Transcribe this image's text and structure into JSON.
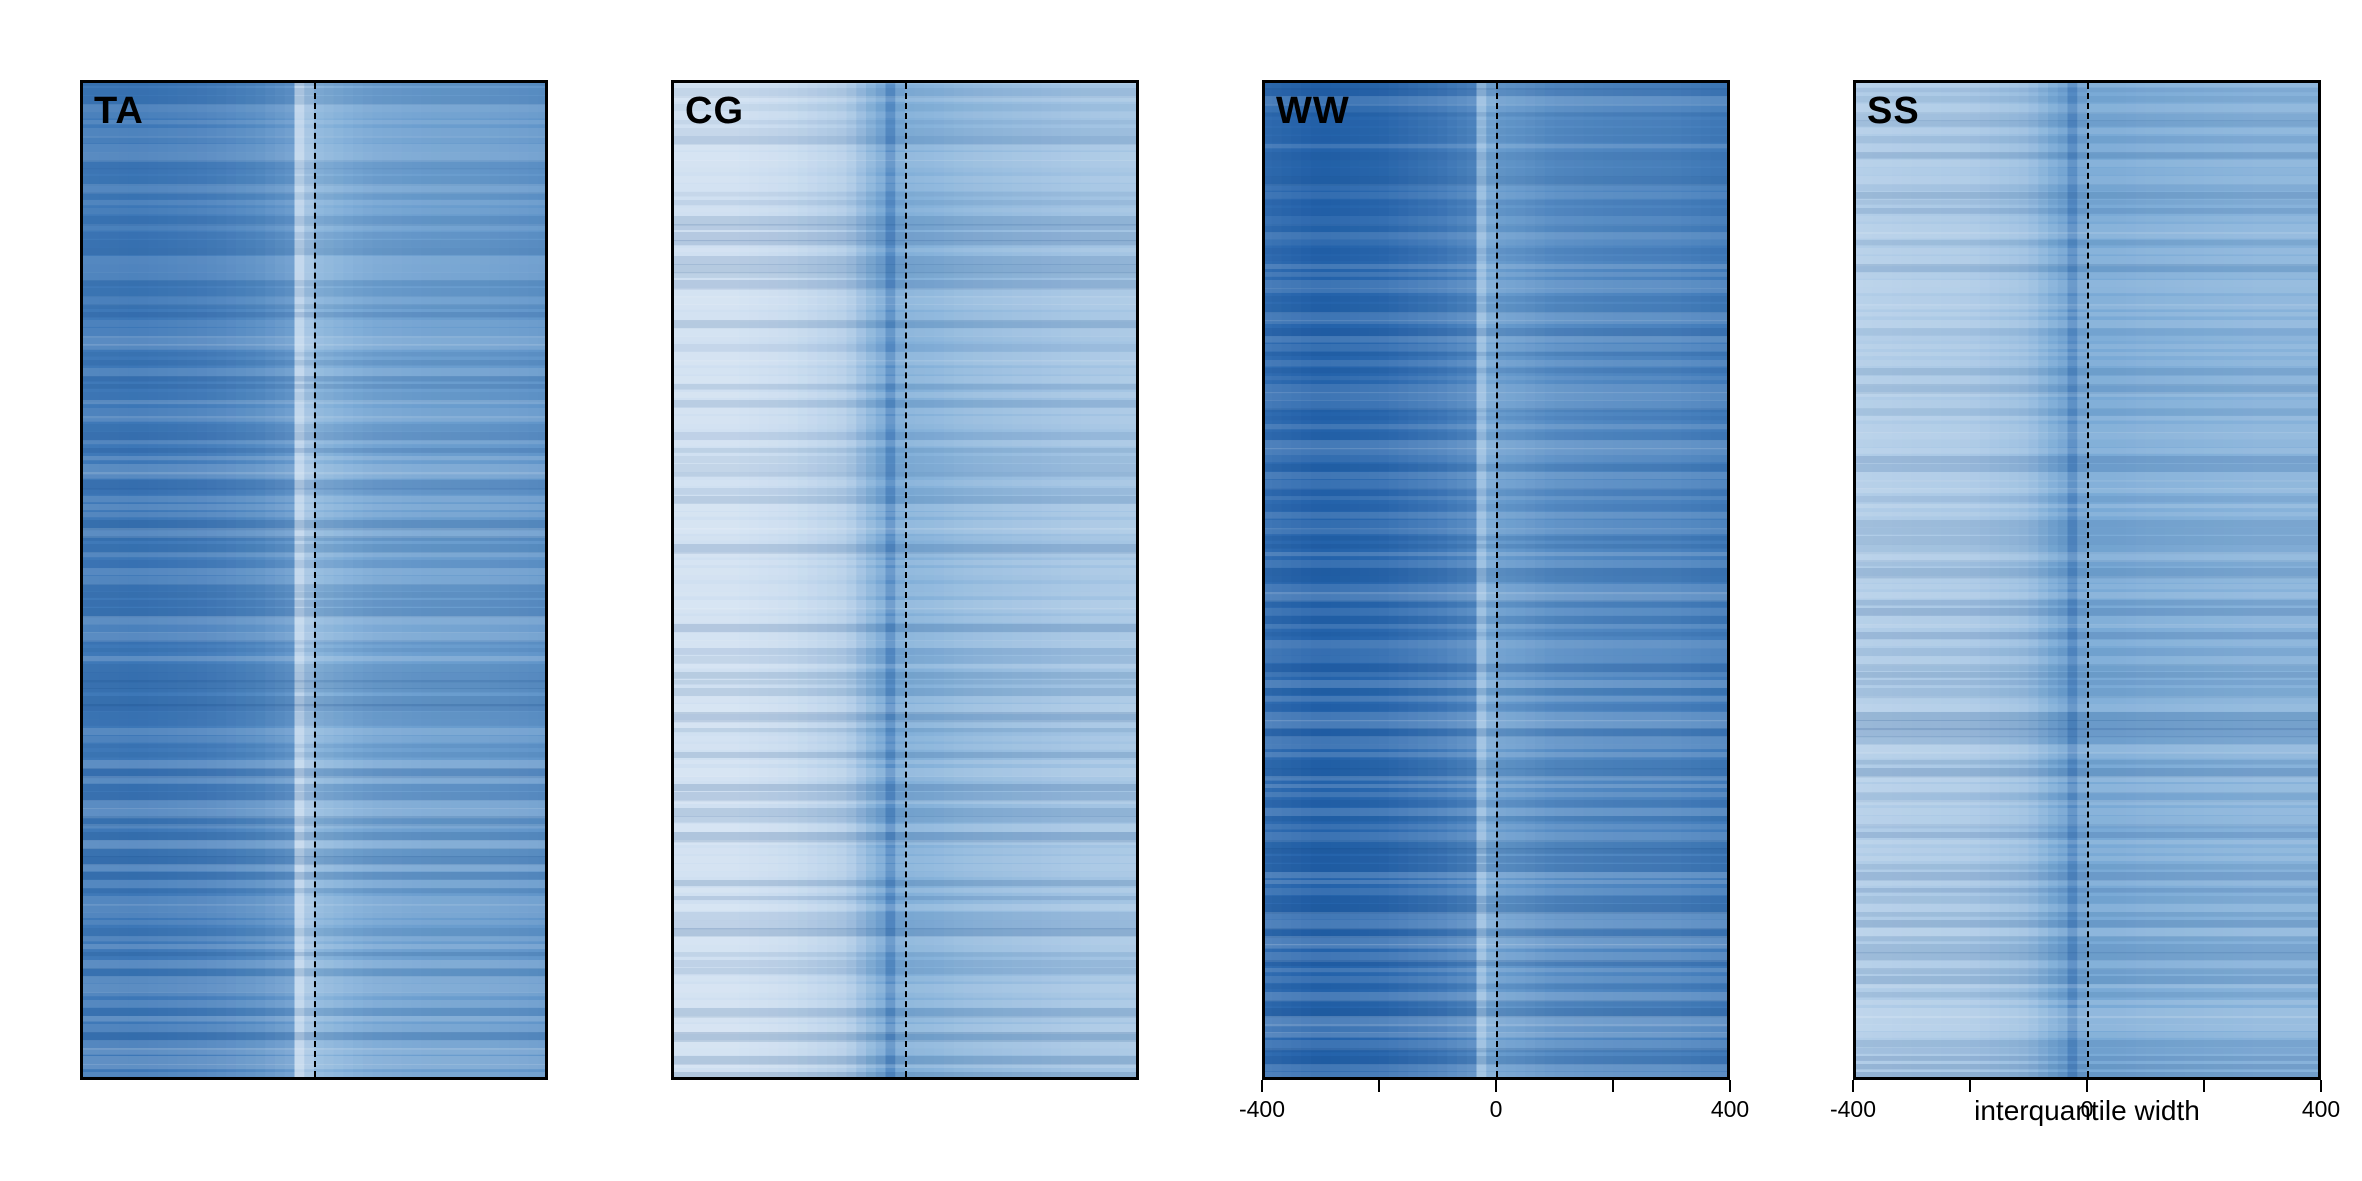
{
  "chart_data": [
    {
      "type": "heatmap",
      "title": "TA",
      "x_range": [
        -400,
        400
      ],
      "center": 0,
      "profile_x": [
        -400,
        -300,
        -200,
        -100,
        -40,
        -30,
        -20,
        -10,
        0,
        50,
        100,
        200,
        300,
        400
      ],
      "profile_intensity": [
        0.82,
        0.84,
        0.8,
        0.72,
        0.62,
        0.3,
        0.08,
        0.3,
        0.42,
        0.48,
        0.54,
        0.58,
        0.6,
        0.64
      ],
      "row_gradient": 0.06
    },
    {
      "type": "heatmap",
      "title": "CG",
      "x_range": [
        -400,
        400
      ],
      "center": 0,
      "profile_x": [
        -400,
        -300,
        -200,
        -100,
        -40,
        -30,
        -20,
        -10,
        0,
        50,
        100,
        200,
        300,
        400
      ],
      "profile_intensity": [
        0.1,
        0.1,
        0.14,
        0.24,
        0.52,
        0.74,
        0.64,
        0.52,
        0.46,
        0.44,
        0.4,
        0.36,
        0.32,
        0.3
      ],
      "row_gradient": 0.04
    },
    {
      "type": "heatmap",
      "title": "WW",
      "x_range": [
        -400,
        400
      ],
      "center": 0,
      "profile_x": [
        -400,
        -300,
        -200,
        -100,
        -40,
        -30,
        -20,
        -10,
        0,
        50,
        100,
        200,
        300,
        400
      ],
      "profile_intensity": [
        0.9,
        0.98,
        0.94,
        0.84,
        0.74,
        0.44,
        0.3,
        0.52,
        0.6,
        0.64,
        0.7,
        0.74,
        0.76,
        0.82
      ],
      "row_gradient": 0.06,
      "xticks": [
        -400,
        -200,
        0,
        200,
        400
      ],
      "xtick_labels": [
        "-400",
        "",
        "0",
        "",
        "400"
      ]
    },
    {
      "type": "heatmap",
      "title": "SS",
      "x_range": [
        -400,
        400
      ],
      "center": 0,
      "profile_x": [
        -400,
        -300,
        -200,
        -100,
        -40,
        -30,
        -20,
        -10,
        0,
        50,
        100,
        200,
        300,
        400
      ],
      "profile_intensity": [
        0.24,
        0.26,
        0.28,
        0.36,
        0.56,
        0.76,
        0.66,
        0.56,
        0.5,
        0.5,
        0.48,
        0.46,
        0.44,
        0.44
      ],
      "row_gradient": 0.04,
      "xticks": [
        -400,
        -200,
        0,
        200,
        400
      ],
      "xtick_labels": [
        "-400",
        "",
        "0",
        "",
        "400"
      ],
      "xlabel": "interquantile width"
    }
  ],
  "colors": {
    "low": "#e6eef8",
    "mid": "#7aaad6",
    "high": "#1f5ea8"
  }
}
